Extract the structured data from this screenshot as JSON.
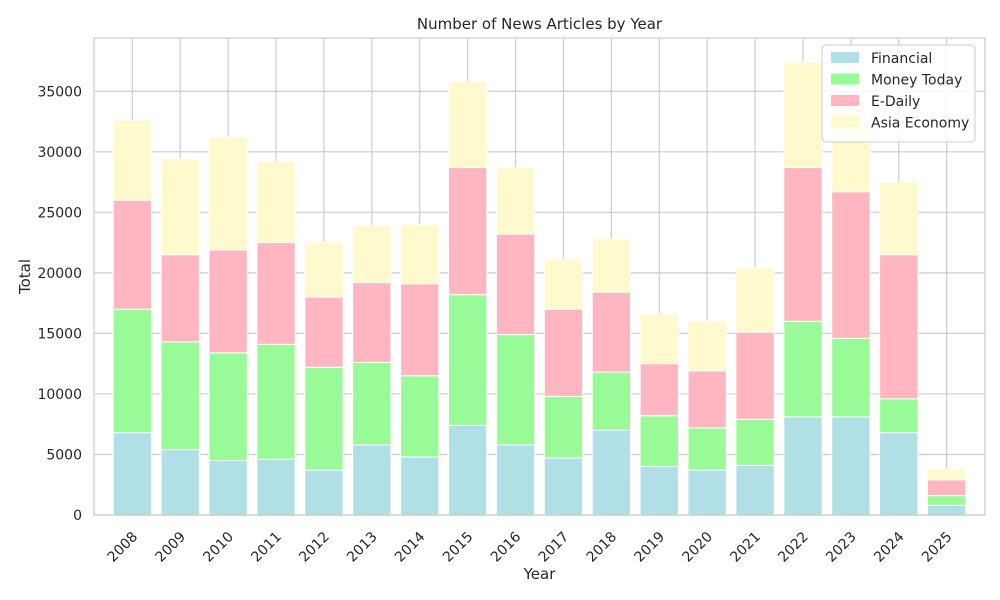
{
  "chart_data": {
    "type": "bar",
    "stacked": true,
    "title": "Number of News Articles by Year",
    "xlabel": "Year",
    "ylabel": "Total",
    "ylim": [
      0,
      39400
    ],
    "yticks": [
      0,
      5000,
      10000,
      15000,
      20000,
      25000,
      30000,
      35000
    ],
    "grid": true,
    "legend_position": "top-right",
    "categories": [
      "2008",
      "2009",
      "2010",
      "2011",
      "2012",
      "2013",
      "2014",
      "2015",
      "2016",
      "2017",
      "2018",
      "2019",
      "2020",
      "2021",
      "2022",
      "2023",
      "2024",
      "2025"
    ],
    "series": [
      {
        "name": "Financial",
        "color": "#b0dfe5",
        "values": [
          6800,
          5400,
          4500,
          4600,
          3700,
          5800,
          4800,
          7400,
          5800,
          4700,
          7000,
          4000,
          3700,
          4100,
          8100,
          8100,
          6800,
          800
        ]
      },
      {
        "name": "Money Today",
        "color": "#98fb98",
        "values": [
          10200,
          8900,
          8900,
          9500,
          8500,
          6800,
          6700,
          10800,
          9100,
          5100,
          4800,
          4200,
          3500,
          3800,
          7900,
          6500,
          2800,
          800
        ]
      },
      {
        "name": "E-Daily",
        "color": "#ffb6c1",
        "values": [
          9000,
          7200,
          8500,
          8400,
          5800,
          6600,
          7600,
          10500,
          8300,
          7200,
          6600,
          4300,
          4700,
          7200,
          12700,
          12100,
          11900,
          1300
        ]
      },
      {
        "name": "Asia Economy",
        "color": "#fffacd",
        "values": [
          6600,
          7900,
          9300,
          6700,
          4500,
          4700,
          4900,
          7100,
          5500,
          4100,
          4400,
          4100,
          4100,
          5300,
          8700,
          6800,
          6000,
          900
        ]
      }
    ]
  }
}
